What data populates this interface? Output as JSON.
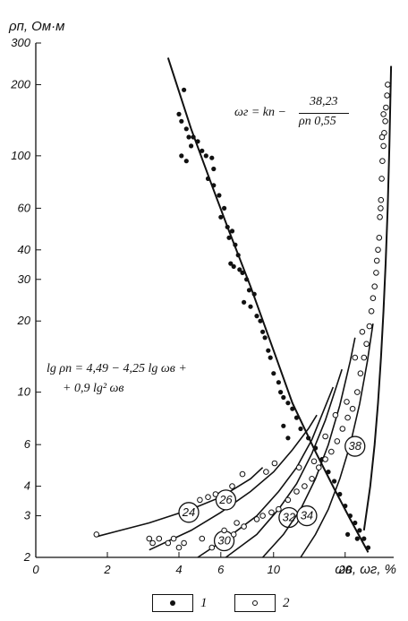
{
  "chart_data": {
    "type": "scatter",
    "title": "",
    "xlabel": "ωв, ωг, %",
    "ylabel": "ρп, Ом·м",
    "xscale": "log",
    "yscale": "log",
    "xlim": [
      1.0,
      32.0
    ],
    "ylim": [
      2,
      300
    ],
    "x_ticks": [
      {
        "label": "0",
        "value": 1.0
      },
      {
        "label": "2",
        "value": 2
      },
      {
        "label": "4",
        "value": 4
      },
      {
        "label": "6",
        "value": 6
      },
      {
        "label": "10",
        "value": 10
      },
      {
        "label": "20",
        "value": 20
      }
    ],
    "y_ticks": [
      {
        "label": "2",
        "value": 2
      },
      {
        "label": "3",
        "value": 3
      },
      {
        "label": "4",
        "value": 4
      },
      {
        "label": "6",
        "value": 6
      },
      {
        "label": "10",
        "value": 10
      },
      {
        "label": "20",
        "value": 20
      },
      {
        "label": "30",
        "value": 30
      },
      {
        "label": "40",
        "value": 40
      },
      {
        "label": "60",
        "value": 60
      },
      {
        "label": "100",
        "value": 100
      },
      {
        "label": "200",
        "value": 200
      },
      {
        "label": "300",
        "value": 300
      }
    ],
    "grid": false,
    "legend_position": "bottom",
    "formulas": {
      "fit1_line1": "lg ρп = 4,49 − 4,25 lg ωв +",
      "fit1_line2": "+ 0,9 lg² ωв",
      "fit2_lhs": "ωг = kп −",
      "fit2_num": "38,23",
      "fit2_den": "ρп 0,55"
    },
    "series": [
      {
        "name": "1",
        "marker": "filled-circle",
        "points": [
          [
            4.0,
            150
          ],
          [
            4.1,
            140
          ],
          [
            4.2,
            190
          ],
          [
            4.3,
            130
          ],
          [
            4.4,
            120
          ],
          [
            4.1,
            100
          ],
          [
            4.3,
            95
          ],
          [
            4.5,
            110
          ],
          [
            4.6,
            120
          ],
          [
            4.8,
            115
          ],
          [
            5.0,
            105
          ],
          [
            5.2,
            100
          ],
          [
            5.5,
            98
          ],
          [
            5.6,
            88
          ],
          [
            5.6,
            75
          ],
          [
            5.3,
            80
          ],
          [
            5.9,
            68
          ],
          [
            6.0,
            55
          ],
          [
            6.2,
            60
          ],
          [
            6.4,
            50
          ],
          [
            6.5,
            45
          ],
          [
            6.7,
            48
          ],
          [
            6.9,
            42
          ],
          [
            7.1,
            38
          ],
          [
            6.6,
            35
          ],
          [
            6.8,
            34
          ],
          [
            7.2,
            33
          ],
          [
            7.4,
            32
          ],
          [
            7.7,
            30
          ],
          [
            7.9,
            27
          ],
          [
            8.3,
            26
          ],
          [
            7.5,
            24
          ],
          [
            8.0,
            23
          ],
          [
            8.5,
            21
          ],
          [
            8.8,
            20
          ],
          [
            9.0,
            18
          ],
          [
            9.2,
            17
          ],
          [
            9.5,
            15
          ],
          [
            9.7,
            14
          ],
          [
            10.0,
            12
          ],
          [
            10.5,
            11
          ],
          [
            10.7,
            10
          ],
          [
            11.0,
            9.5
          ],
          [
            11.5,
            9
          ],
          [
            12.0,
            8.5
          ],
          [
            12.5,
            7.8
          ],
          [
            11.0,
            7.2
          ],
          [
            11.5,
            6.4
          ],
          [
            13.0,
            7.0
          ],
          [
            14.0,
            6.4
          ],
          [
            15.0,
            5.8
          ],
          [
            16.0,
            5.2
          ],
          [
            17.0,
            4.6
          ],
          [
            18.0,
            4.2
          ],
          [
            19.0,
            3.7
          ],
          [
            20.0,
            3.3
          ],
          [
            21.0,
            3.0
          ],
          [
            22.0,
            2.8
          ],
          [
            23.0,
            2.6
          ],
          [
            24.0,
            2.4
          ],
          [
            25.0,
            2.2
          ],
          [
            20.5,
            2.5
          ],
          [
            22.5,
            2.4
          ]
        ]
      },
      {
        "name": "2",
        "marker": "open-circle",
        "points": [
          [
            1.8,
            2.5
          ],
          [
            3.0,
            2.4
          ],
          [
            3.1,
            2.3
          ],
          [
            3.3,
            2.4
          ],
          [
            3.6,
            2.3
          ],
          [
            3.8,
            2.4
          ],
          [
            4.0,
            2.2
          ],
          [
            4.2,
            2.3
          ],
          [
            5.0,
            2.4
          ],
          [
            5.5,
            2.2
          ],
          [
            6.2,
            2.6
          ],
          [
            6.8,
            2.5
          ],
          [
            7.0,
            2.8
          ],
          [
            7.5,
            2.7
          ],
          [
            8.5,
            2.9
          ],
          [
            9.0,
            3.0
          ],
          [
            9.8,
            3.1
          ],
          [
            10.5,
            3.2
          ],
          [
            11.5,
            3.5
          ],
          [
            12.5,
            3.8
          ],
          [
            13.5,
            4.0
          ],
          [
            14.5,
            4.3
          ],
          [
            15.5,
            4.8
          ],
          [
            16.5,
            5.2
          ],
          [
            17.5,
            5.6
          ],
          [
            18.5,
            6.2
          ],
          [
            19.5,
            7.0
          ],
          [
            20.5,
            7.8
          ],
          [
            21.5,
            8.5
          ],
          [
            22.5,
            10.0
          ],
          [
            23.2,
            12.0
          ],
          [
            24.0,
            14.0
          ],
          [
            24.6,
            16.0
          ],
          [
            25.3,
            19.0
          ],
          [
            25.8,
            22.0
          ],
          [
            26.2,
            25.0
          ],
          [
            26.6,
            28.0
          ],
          [
            27.0,
            32.0
          ],
          [
            27.2,
            36.0
          ],
          [
            27.5,
            40.0
          ],
          [
            27.8,
            45.0
          ],
          [
            28.0,
            55.0
          ],
          [
            28.3,
            65.0
          ],
          [
            28.5,
            80.0
          ],
          [
            28.7,
            95.0
          ],
          [
            29.0,
            110.0
          ],
          [
            29.2,
            125.0
          ],
          [
            29.5,
            140.0
          ],
          [
            29.7,
            160.0
          ],
          [
            30.0,
            180.0
          ],
          [
            30.2,
            200.0
          ],
          [
            28.2,
            60.0
          ],
          [
            28.6,
            120.0
          ],
          [
            29.0,
            150.0
          ],
          [
            4.9,
            3.5
          ],
          [
            5.3,
            3.6
          ],
          [
            5.7,
            3.7
          ],
          [
            6.7,
            4.0
          ],
          [
            7.4,
            4.5
          ],
          [
            9.3,
            4.6
          ],
          [
            10.1,
            5.0
          ],
          [
            12.8,
            4.8
          ],
          [
            14.8,
            5.1
          ],
          [
            16.5,
            6.5
          ],
          [
            18.2,
            8.0
          ],
          [
            20.3,
            9.1
          ],
          [
            22.0,
            14.0
          ],
          [
            23.6,
            18.0
          ]
        ]
      }
    ],
    "curves": [
      {
        "label": "fit-1",
        "points": [
          [
            3.6,
            260
          ],
          [
            4.5,
            130
          ],
          [
            5.5,
            75
          ],
          [
            6.5,
            48
          ],
          [
            8.0,
            28
          ],
          [
            10.0,
            15
          ],
          [
            12.0,
            9
          ],
          [
            15.0,
            5.6
          ],
          [
            18.0,
            3.9
          ],
          [
            21.0,
            2.9
          ],
          [
            25.0,
            2.1
          ]
        ]
      },
      {
        "label": "fit-2",
        "points": [
          [
            24.0,
            2.6
          ],
          [
            25.5,
            4.0
          ],
          [
            26.6,
            6.0
          ],
          [
            27.5,
            9.0
          ],
          [
            28.3,
            14.0
          ],
          [
            29.0,
            22.0
          ],
          [
            29.6,
            35.0
          ],
          [
            30.2,
            60.0
          ],
          [
            30.7,
            110.0
          ],
          [
            31.2,
            240.0
          ]
        ]
      }
    ],
    "iso_curves": [
      {
        "label": "24",
        "label_at": [
          4.4,
          3.1
        ],
        "points": [
          [
            1.8,
            2.45
          ],
          [
            3.0,
            2.8
          ],
          [
            4.5,
            3.2
          ],
          [
            6.0,
            3.6
          ],
          [
            8.0,
            4.3
          ],
          [
            9.0,
            4.8
          ]
        ]
      },
      {
        "label": "26",
        "label_at": [
          6.3,
          3.5
        ],
        "points": [
          [
            3.0,
            2.15
          ],
          [
            4.5,
            2.6
          ],
          [
            6.0,
            3.1
          ],
          [
            8.0,
            3.8
          ],
          [
            10.0,
            4.6
          ],
          [
            12.0,
            5.7
          ],
          [
            14.0,
            7.0
          ],
          [
            15.2,
            8.0
          ]
        ]
      },
      {
        "label": "30",
        "label_at": [
          6.2,
          2.35
        ],
        "points": [
          [
            4.8,
            2.0
          ],
          [
            6.5,
            2.45
          ],
          [
            8.5,
            3.0
          ],
          [
            10.5,
            3.8
          ],
          [
            12.5,
            4.8
          ],
          [
            14.5,
            6.3
          ],
          [
            16.5,
            8.7
          ],
          [
            17.8,
            10.5
          ]
        ]
      },
      {
        "label": "32",
        "label_at": [
          11.6,
          2.95
        ],
        "points": [
          [
            6.3,
            2.0
          ],
          [
            8.5,
            2.5
          ],
          [
            10.5,
            3.2
          ],
          [
            12.5,
            4.1
          ],
          [
            14.5,
            5.5
          ],
          [
            16.5,
            7.6
          ],
          [
            18.5,
            10.8
          ],
          [
            19.4,
            12.5
          ]
        ]
      },
      {
        "label": "34",
        "label_at": [
          13.8,
          3.0
        ],
        "points": [
          [
            9.0,
            2.0
          ],
          [
            11.0,
            2.5
          ],
          [
            13.0,
            3.2
          ],
          [
            15.0,
            4.3
          ],
          [
            17.0,
            6.0
          ],
          [
            19.0,
            8.8
          ],
          [
            21.0,
            13.5
          ],
          [
            22.0,
            17.0
          ]
        ]
      },
      {
        "label": "38",
        "label_at": [
          22.0,
          5.9
        ],
        "points": [
          [
            13.0,
            2.0
          ],
          [
            15.0,
            2.5
          ],
          [
            17.0,
            3.2
          ],
          [
            19.0,
            4.3
          ],
          [
            21.0,
            6.0
          ],
          [
            23.0,
            8.9
          ],
          [
            24.8,
            13.5
          ],
          [
            26.2,
            19.5
          ]
        ]
      }
    ]
  },
  "legend": {
    "item1_label": "1",
    "item2_label": "2"
  },
  "colors": {
    "ink": "#111111",
    "background": "#ffffff"
  }
}
